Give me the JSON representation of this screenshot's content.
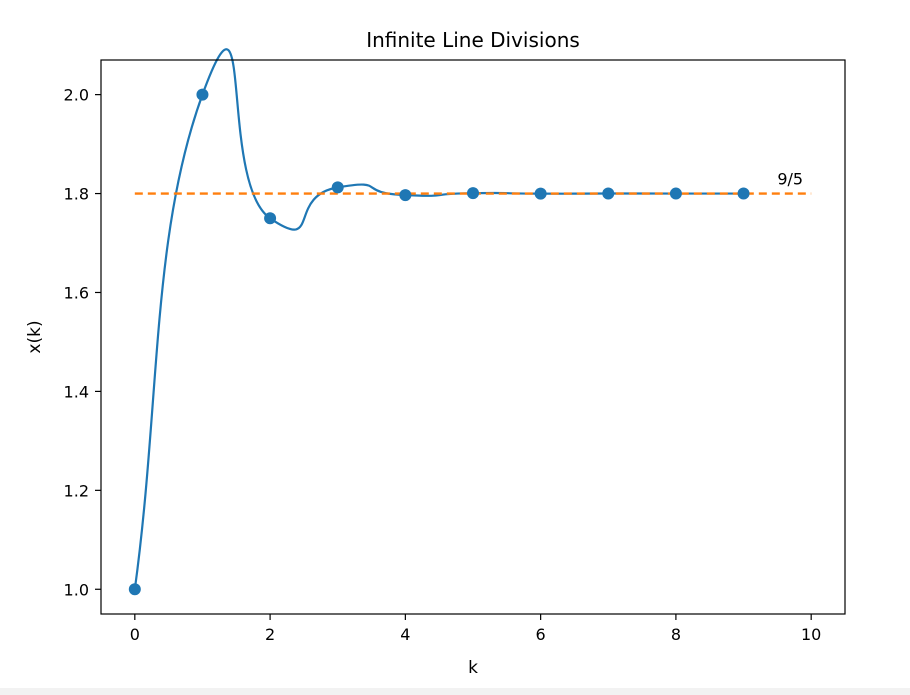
{
  "chart_data": {
    "type": "line",
    "title": "Infinite Line Divisions",
    "xlabel": "k",
    "ylabel": "x(k)",
    "xlim": [
      -0.5,
      10.5
    ],
    "ylim": [
      0.95,
      2.07
    ],
    "xticks": [
      0,
      2,
      4,
      6,
      8,
      10
    ],
    "xtick_labels": [
      "0",
      "2",
      "4",
      "6",
      "8",
      "10"
    ],
    "yticks": [
      1.0,
      1.2,
      1.4,
      1.6,
      1.8,
      2.0
    ],
    "ytick_labels": [
      "1.0",
      "1.2",
      "1.4",
      "1.6",
      "1.8",
      "2.0"
    ],
    "grid": false,
    "series": [
      {
        "kind": "points",
        "color": "#1f77b4",
        "x": [
          0,
          1,
          2,
          3,
          4,
          5,
          6,
          7,
          8,
          9
        ],
        "y": [
          1.0,
          2.0,
          1.75,
          1.8125,
          1.796875,
          1.80078125,
          1.7998046875,
          1.800048828125,
          1.79998779296875,
          1.8000030517578125
        ]
      },
      {
        "kind": "smooth-curve",
        "color": "#1f77b4",
        "x": [
          0,
          1,
          2,
          3,
          4,
          5,
          6,
          7,
          8,
          9
        ]
      },
      {
        "kind": "dashed-line",
        "color": "#ff7f0e",
        "x": [
          0,
          10
        ],
        "y": [
          1.8,
          1.8
        ]
      }
    ],
    "annotations": [
      {
        "text": "9/5",
        "x": 9.5,
        "y": 1.8
      }
    ]
  }
}
